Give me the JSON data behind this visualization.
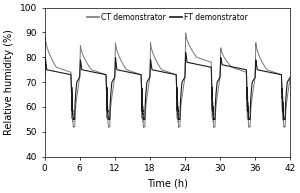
{
  "title": "",
  "xlabel": "Time (h)",
  "ylabel": "Relative humidity (%)",
  "xlim": [
    0,
    42
  ],
  "ylim": [
    40,
    100
  ],
  "xticks": [
    0,
    6,
    12,
    18,
    24,
    30,
    36,
    42
  ],
  "yticks": [
    40,
    50,
    60,
    70,
    80,
    90,
    100
  ],
  "ft_color": "#1a1a1a",
  "ct_color": "#787878",
  "legend_labels": [
    "FT demonstrator",
    "CT demonstrator"
  ],
  "figsize": [
    3.0,
    1.93
  ],
  "dpi": 100
}
